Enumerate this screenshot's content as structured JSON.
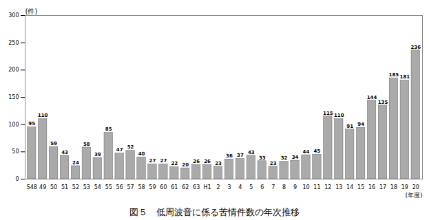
{
  "chart_data": {
    "type": "bar",
    "title": "図５　低周波音に係る苦情件数の年次推移",
    "ylabel": "(件)",
    "xlabel": "(年度)",
    "categories": [
      "S48",
      "49",
      "50",
      "51",
      "52",
      "53",
      "54",
      "55",
      "56",
      "57",
      "58",
      "59",
      "60",
      "61",
      "62",
      "63",
      "H1",
      "2",
      "3",
      "4",
      "5",
      "6",
      "7",
      "8",
      "9",
      "10",
      "11",
      "12",
      "13",
      "14",
      "15",
      "16",
      "17",
      "18",
      "19",
      "20"
    ],
    "values": [
      95,
      110,
      59,
      43,
      24,
      58,
      39,
      85,
      47,
      52,
      40,
      27,
      27,
      22,
      20,
      26,
      26,
      23,
      36,
      37,
      43,
      33,
      23,
      32,
      34,
      44,
      45,
      115,
      110,
      91,
      94,
      144,
      135,
      185,
      181,
      236
    ],
    "color": "#aaaaaa",
    "ylim": [
      0,
      300
    ],
    "yticks": [
      0,
      50,
      100,
      150,
      200,
      250,
      300
    ],
    "grid": false,
    "data_labels": true
  }
}
